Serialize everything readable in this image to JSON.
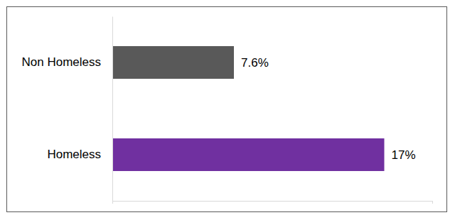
{
  "chart_data": {
    "type": "bar",
    "orientation": "horizontal",
    "categories": [
      "Non Homeless",
      "Homeless"
    ],
    "values": [
      7.6,
      17
    ],
    "value_labels": [
      "7.6%",
      "17%"
    ],
    "colors": [
      "#595959",
      "#7030a0"
    ],
    "xlim": [
      0,
      20
    ],
    "xticks": [
      0,
      20
    ],
    "grid": false,
    "data_labels": true,
    "tick_labels": "y"
  }
}
